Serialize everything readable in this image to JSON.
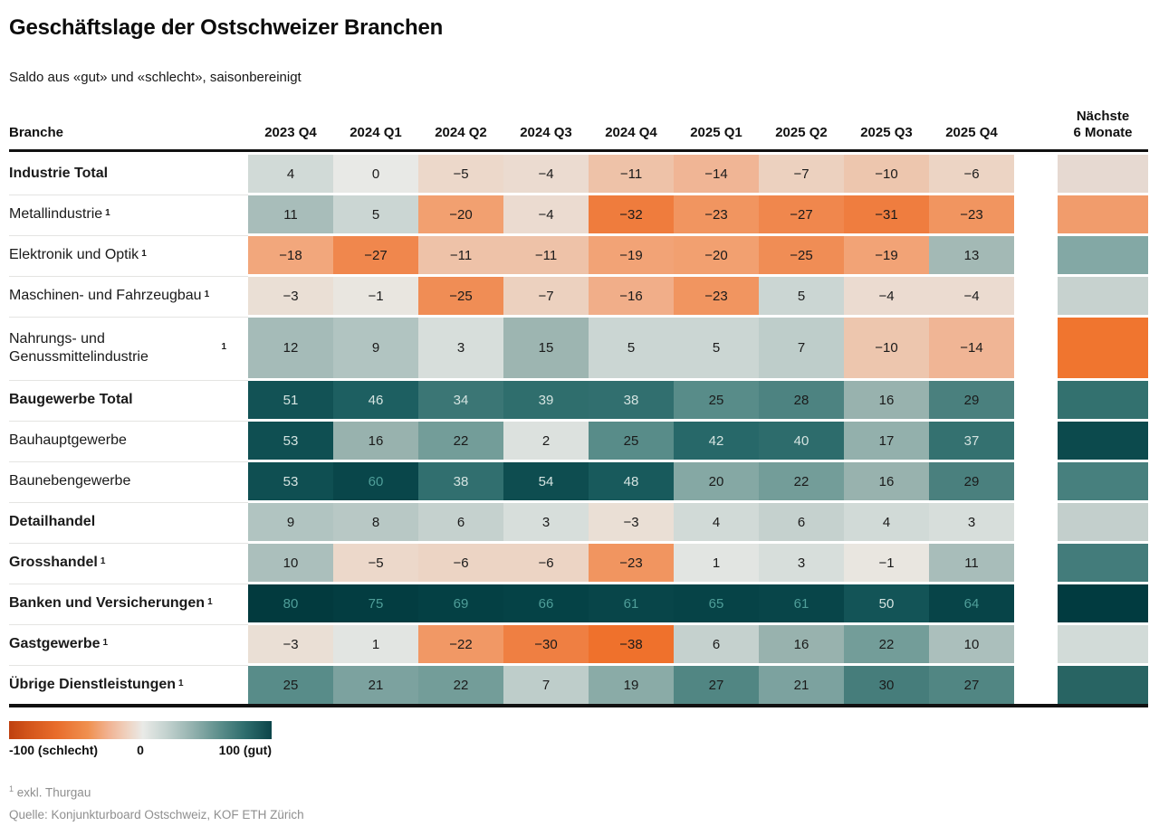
{
  "header": {
    "title": "Geschäftslage der Ostschweizer Branchen",
    "subtitle": "Saldo aus «gut» und «schlecht», saisonbereinigt"
  },
  "table": {
    "branch_header": "Branche",
    "quarters": [
      "2023 Q4",
      "2024 Q1",
      "2024 Q2",
      "2024 Q3",
      "2024 Q4",
      "2025 Q1",
      "2025 Q2",
      "2025 Q3",
      "2025 Q4"
    ],
    "next6_header_line1": "Nächste",
    "next6_header_line2": "6 Monate",
    "rows": [
      {
        "label": "Industrie Total",
        "bold": true,
        "footnote": false,
        "tall": false,
        "values": [
          4,
          0,
          -5,
          -4,
          -11,
          -14,
          -7,
          -10,
          -6
        ],
        "next6_color": "#e6d9d1"
      },
      {
        "label": "Metallindustrie",
        "bold": false,
        "footnote": true,
        "tall": false,
        "values": [
          11,
          5,
          -20,
          -4,
          -32,
          -23,
          -27,
          -31,
          -23
        ],
        "next6_color": "#f19c6c"
      },
      {
        "label": "Elektronik und Optik",
        "bold": false,
        "footnote": true,
        "tall": false,
        "values": [
          -18,
          -27,
          -11,
          -11,
          -19,
          -20,
          -25,
          -19,
          13
        ],
        "next6_color": "#83a8a5"
      },
      {
        "label": "Maschinen- und Fahrzeugbau",
        "bold": false,
        "footnote": true,
        "tall": false,
        "values": [
          -3,
          -1,
          -25,
          -7,
          -16,
          -23,
          5,
          -4,
          -4
        ],
        "next6_color": "#c7d2cf"
      },
      {
        "label": "Nahrungs- und Genussmittelindustrie",
        "bold": false,
        "footnote": true,
        "tall": true,
        "values": [
          12,
          9,
          3,
          15,
          5,
          5,
          7,
          -10,
          -14
        ],
        "next6_color": "#f0752f"
      },
      {
        "label": "Baugewerbe Total",
        "bold": true,
        "footnote": false,
        "tall": false,
        "values": [
          51,
          46,
          34,
          39,
          38,
          25,
          28,
          16,
          29
        ],
        "next6_color": "#33716f"
      },
      {
        "label": "Bauhauptgewerbe",
        "bold": false,
        "footnote": false,
        "tall": false,
        "values": [
          53,
          16,
          22,
          2,
          25,
          42,
          40,
          17,
          37
        ],
        "next6_color": "#0c4a4d"
      },
      {
        "label": "Baunebengewerbe",
        "bold": false,
        "footnote": false,
        "tall": false,
        "values": [
          53,
          60,
          38,
          54,
          48,
          20,
          22,
          16,
          29
        ],
        "next6_color": "#47807e"
      },
      {
        "label": "Detailhandel",
        "bold": true,
        "footnote": false,
        "tall": false,
        "values": [
          9,
          8,
          6,
          3,
          -3,
          4,
          6,
          4,
          3
        ],
        "next6_color": "#c3cfcc"
      },
      {
        "label": "Grosshandel",
        "bold": true,
        "footnote": true,
        "tall": false,
        "values": [
          10,
          -5,
          -6,
          -6,
          -23,
          1,
          3,
          -1,
          11
        ],
        "next6_color": "#437c7b"
      },
      {
        "label": "Banken und Versicherungen",
        "bold": true,
        "footnote": true,
        "tall": false,
        "values": [
          80,
          75,
          69,
          66,
          61,
          65,
          61,
          50,
          64
        ],
        "next6_color": "#013b40"
      },
      {
        "label": "Gastgewerbe",
        "bold": true,
        "footnote": true,
        "tall": false,
        "values": [
          -3,
          1,
          -22,
          -30,
          -38,
          6,
          16,
          22,
          10
        ],
        "next6_color": "#d2dbd8"
      },
      {
        "label": "Übrige Dienstleistungen",
        "bold": true,
        "footnote": true,
        "tall": false,
        "values": [
          25,
          21,
          22,
          7,
          19,
          27,
          21,
          30,
          27
        ],
        "next6_color": "#286463"
      }
    ]
  },
  "legend": {
    "min_label": "-100 (schlecht)",
    "zero_label": "0",
    "max_label": "100 (gut)"
  },
  "footnotes": {
    "note1_marker": "1",
    "note1_text": "exkl. Thurgau",
    "source": "Quelle: Konjunkturboard Ostschweiz, KOF ETH Zürich"
  },
  "chart_data": {
    "type": "heatmap",
    "title": "Geschäftslage der Ostschweizer Branchen",
    "subtitle": "Saldo aus «gut» und «schlecht», saisonbereinigt",
    "x": [
      "2023 Q4",
      "2024 Q1",
      "2024 Q2",
      "2024 Q3",
      "2024 Q4",
      "2025 Q1",
      "2025 Q2",
      "2025 Q3",
      "2025 Q4"
    ],
    "series": [
      {
        "name": "Industrie Total",
        "values": [
          4,
          0,
          -5,
          -4,
          -11,
          -14,
          -7,
          -10,
          -6
        ]
      },
      {
        "name": "Metallindustrie",
        "values": [
          11,
          5,
          -20,
          -4,
          -32,
          -23,
          -27,
          -31,
          -23
        ]
      },
      {
        "name": "Elektronik und Optik",
        "values": [
          -18,
          -27,
          -11,
          -11,
          -19,
          -20,
          -25,
          -19,
          13
        ]
      },
      {
        "name": "Maschinen- und Fahrzeugbau",
        "values": [
          -3,
          -1,
          -25,
          -7,
          -16,
          -23,
          5,
          -4,
          -4
        ]
      },
      {
        "name": "Nahrungs- und Genussmittelindustrie",
        "values": [
          12,
          9,
          3,
          15,
          5,
          5,
          7,
          -10,
          -14
        ]
      },
      {
        "name": "Baugewerbe Total",
        "values": [
          51,
          46,
          34,
          39,
          38,
          25,
          28,
          16,
          29
        ]
      },
      {
        "name": "Bauhauptgewerbe",
        "values": [
          53,
          16,
          22,
          2,
          25,
          42,
          40,
          17,
          37
        ]
      },
      {
        "name": "Baunebengewerbe",
        "values": [
          53,
          60,
          38,
          54,
          48,
          20,
          22,
          16,
          29
        ]
      },
      {
        "name": "Detailhandel",
        "values": [
          9,
          8,
          6,
          3,
          -3,
          4,
          6,
          4,
          3
        ]
      },
      {
        "name": "Grosshandel",
        "values": [
          10,
          -5,
          -6,
          -6,
          -23,
          1,
          3,
          -1,
          11
        ]
      },
      {
        "name": "Banken und Versicherungen",
        "values": [
          80,
          75,
          69,
          66,
          61,
          65,
          61,
          50,
          64
        ]
      },
      {
        "name": "Gastgewerbe",
        "values": [
          -3,
          1,
          -22,
          -30,
          -38,
          6,
          16,
          22,
          10
        ]
      },
      {
        "name": "Übrige Dienstleistungen",
        "values": [
          25,
          21,
          22,
          7,
          19,
          27,
          21,
          30,
          27
        ]
      }
    ],
    "extra_column": {
      "label": "Nächste 6 Monate",
      "encoding": "color-only",
      "colors": [
        "#e6d9d1",
        "#f19c6c",
        "#83a8a5",
        "#c7d2cf",
        "#f0752f",
        "#33716f",
        "#0c4a4d",
        "#47807e",
        "#c3cfcc",
        "#437c7b",
        "#013b40",
        "#d2dbd8",
        "#286463"
      ]
    },
    "color_scale": {
      "domain": [
        -100,
        0,
        100
      ],
      "range": [
        "#bf4110",
        "#e8e9e6",
        "#002f33"
      ],
      "labels": [
        "-100 (schlecht)",
        "0",
        "100 (gut)"
      ]
    },
    "legend_position": "bottom-left",
    "grid": false
  }
}
